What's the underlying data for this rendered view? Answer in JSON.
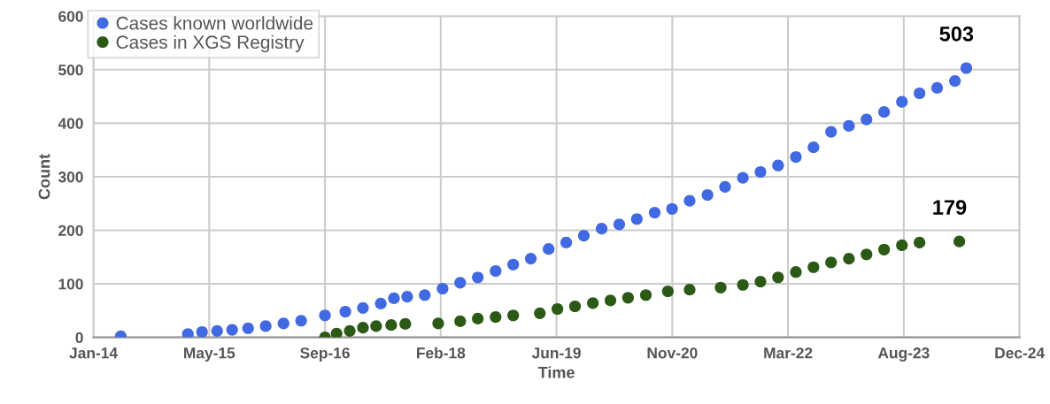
{
  "chart_data": {
    "type": "scatter",
    "xlabel": "Time",
    "ylabel": "Count",
    "xlim": [
      "2014-01-01",
      "2024-12-14"
    ],
    "xticks": [
      {
        "value": "2014-01-01",
        "label": "Jan-14"
      },
      {
        "value": "2015-05-16",
        "label": "May-15"
      },
      {
        "value": "2016-09-27",
        "label": "Sep-16"
      },
      {
        "value": "2018-02-09",
        "label": "Feb-18"
      },
      {
        "value": "2019-06-24",
        "label": "Jun-19"
      },
      {
        "value": "2020-11-05",
        "label": "Nov-20"
      },
      {
        "value": "2022-03-20",
        "label": "Mar-22"
      },
      {
        "value": "2023-08-02",
        "label": "Aug-23"
      },
      {
        "value": "2024-12-14",
        "label": "Dec-24"
      }
    ],
    "ylim": [
      0,
      600
    ],
    "yticks": [
      0,
      100,
      200,
      300,
      400,
      500,
      600
    ],
    "grid": true,
    "legend": "top left",
    "marker": "circle",
    "series": [
      {
        "name": "Cases known worldwide",
        "color": "#4169e1",
        "x": [
          "2014-04-29",
          "2015-02-13",
          "2015-04-15",
          "2015-06-19",
          "2015-08-23",
          "2015-10-31",
          "2016-01-15",
          "2016-04-01",
          "2016-06-16",
          "2016-09-27",
          "2016-12-24",
          "2017-03-10",
          "2017-05-26",
          "2017-07-22",
          "2017-09-17",
          "2017-12-02",
          "2018-02-17",
          "2018-05-04",
          "2018-07-19",
          "2018-10-04",
          "2018-12-19",
          "2019-03-05",
          "2019-05-21",
          "2019-08-05",
          "2019-10-20",
          "2020-01-05",
          "2020-03-21",
          "2020-06-05",
          "2020-08-21",
          "2020-11-04",
          "2021-01-19",
          "2021-04-06",
          "2021-06-21",
          "2021-09-06",
          "2021-11-21",
          "2022-02-05",
          "2022-04-23",
          "2022-07-08",
          "2022-09-22",
          "2022-12-08",
          "2023-02-22",
          "2023-05-09",
          "2023-07-25",
          "2023-10-09",
          "2023-12-24",
          "2024-03-10",
          "2024-04-28"
        ],
        "values": [
          2,
          6,
          10,
          12,
          14,
          17,
          21,
          26,
          31,
          41,
          48,
          55,
          63,
          73,
          76,
          79,
          91,
          102,
          112,
          124,
          136,
          147,
          165,
          177,
          190,
          203,
          211,
          221,
          233,
          240,
          255,
          266,
          281,
          298,
          309,
          321,
          337,
          355,
          384,
          395,
          407,
          421,
          440,
          456,
          466,
          479,
          503
        ]
      },
      {
        "name": "Cases in XGS Registry",
        "color": "#2b5a16",
        "x": [
          "2016-09-27",
          "2016-11-16",
          "2017-01-12",
          "2017-03-10",
          "2017-05-06",
          "2017-07-10",
          "2017-09-09",
          "2018-01-29",
          "2018-05-04",
          "2018-07-19",
          "2018-10-04",
          "2018-12-19",
          "2019-04-13",
          "2019-06-28",
          "2019-09-12",
          "2019-11-28",
          "2020-02-12",
          "2020-04-28",
          "2020-07-14",
          "2020-10-17",
          "2021-01-19",
          "2021-06-02",
          "2021-09-06",
          "2021-11-21",
          "2022-02-05",
          "2022-04-23",
          "2022-07-08",
          "2022-09-22",
          "2022-12-08",
          "2023-02-22",
          "2023-05-09",
          "2023-07-25",
          "2023-10-09",
          "2024-03-29"
        ],
        "values": [
          0,
          7,
          12,
          18,
          21,
          23,
          25,
          26,
          30,
          35,
          38,
          41,
          45,
          53,
          58,
          64,
          69,
          74,
          79,
          86,
          89,
          93,
          98,
          104,
          112,
          122,
          131,
          140,
          147,
          155,
          164,
          172,
          177,
          179
        ]
      }
    ],
    "annotations": [
      {
        "text": "503",
        "x": "2024-04-28",
        "y": 503
      },
      {
        "text": "179",
        "x": "2024-03-29",
        "y": 179
      }
    ]
  }
}
